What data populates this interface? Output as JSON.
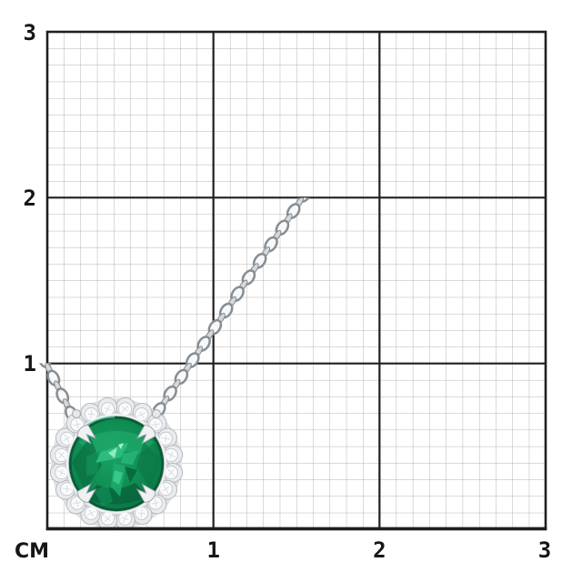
{
  "page": {
    "background_color": "#ffffff"
  },
  "grid": {
    "unit_label": "CM",
    "x_tick_labels": [
      "1",
      "2",
      "3"
    ],
    "y_tick_labels": [
      "3",
      "2",
      "1"
    ],
    "range_cm": [
      0,
      3
    ],
    "minor_divisions_per_cm": 10,
    "major_line_color": "#1f1f1f",
    "minor_line_color": "#b4b4b4",
    "label_color": "#161616"
  },
  "subject": {
    "item": "emerald-halo-pendant-on-chain",
    "approx_pendant_diameter_cm": 0.8,
    "colors": {
      "emerald_base": "#0e8a50",
      "emerald_dark": "#0a6b3f",
      "emerald_deep": "#075c36",
      "emerald_bright": "#2fbd80",
      "emerald_mint": "#94ecc6",
      "metal_light": "#f7f8f9",
      "metal_mid": "#d6dadd",
      "metal_edge": "#878e94",
      "diamond_fill": "#fafbfc",
      "diamond_line": "#d9dcdf"
    }
  }
}
